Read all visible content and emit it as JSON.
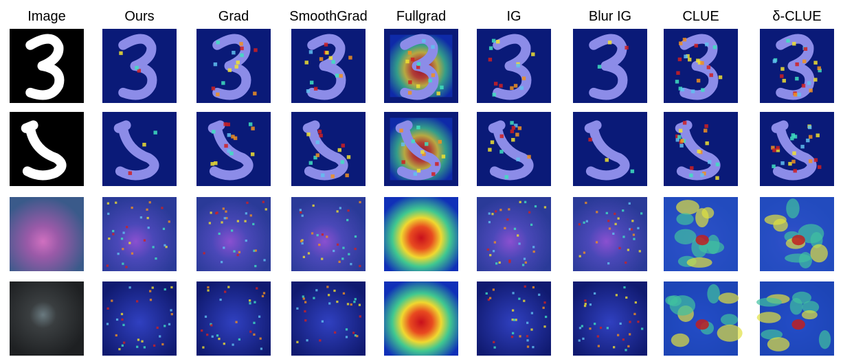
{
  "columns": [
    "Image",
    "Ours",
    "Grad",
    "SmoothGrad",
    "Fullgrad",
    "IG",
    "Blur IG",
    "CLUE",
    "δ-CLUE"
  ]
}
